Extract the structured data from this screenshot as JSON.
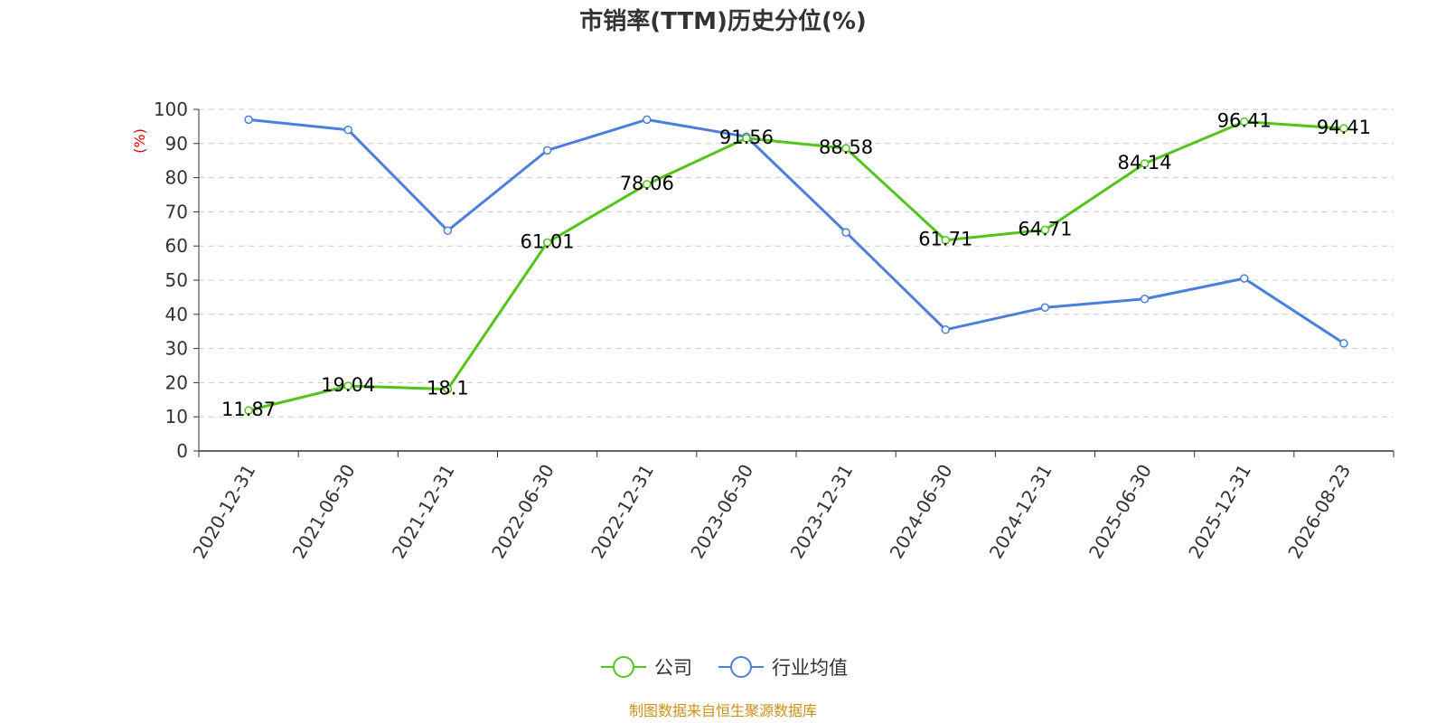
{
  "chart_data": {
    "type": "line",
    "title": "市销率(TTM)历史分位(%)",
    "ylabel": "(%)",
    "ylim": [
      0,
      100
    ],
    "ytick_step": 10,
    "grid": true,
    "categories": [
      "2020-12-31",
      "2021-06-30",
      "2021-12-31",
      "2022-06-30",
      "2022-12-31",
      "2023-06-30",
      "2023-12-31",
      "2024-06-30",
      "2024-12-31",
      "2025-06-30",
      "2025-12-31",
      "2026-08-23"
    ],
    "series": [
      {
        "name": "公司",
        "color": "#52c41a",
        "show_labels": true,
        "values": [
          11.87,
          19.04,
          18.1,
          61.01,
          78.06,
          91.56,
          88.58,
          61.71,
          64.71,
          84.14,
          96.41,
          94.41
        ]
      },
      {
        "name": "行业均值",
        "color": "#4a7fdc",
        "show_labels": false,
        "values": [
          97,
          94,
          64.5,
          88,
          97,
          92,
          64,
          35.5,
          42,
          44.5,
          50.5,
          31.5
        ]
      }
    ],
    "legend_position": "bottom",
    "source": "制图数据来自恒生聚源数据库"
  }
}
